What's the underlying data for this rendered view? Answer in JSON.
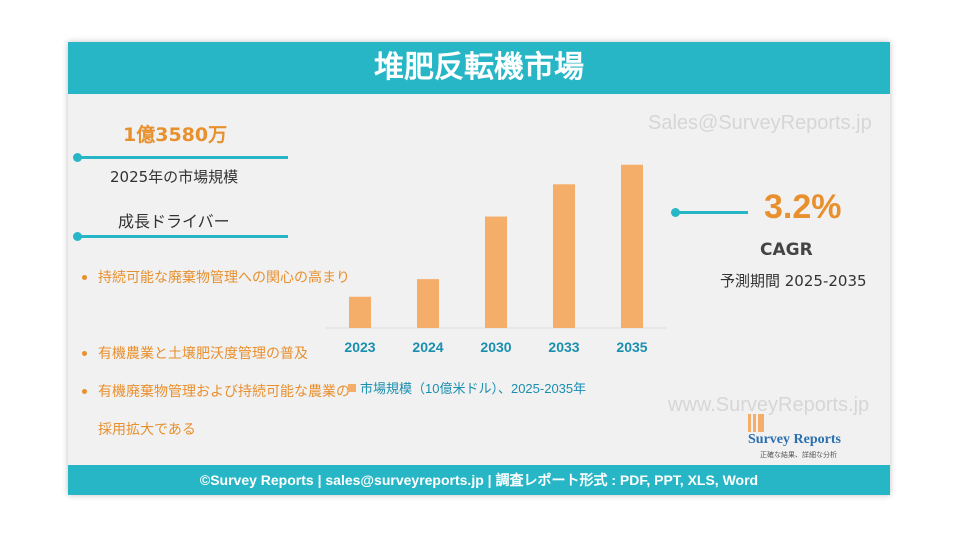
{
  "header": {
    "title": "堆肥反転機市場"
  },
  "watermarks": [
    "Sales@SurveyReports.jp",
    "www.SurveyReports.jp"
  ],
  "stats": {
    "market_value": "1億3580万",
    "market_label": "2025年の市場規模",
    "drivers_heading": "成長ドライバー",
    "cagr": "3.2%",
    "cagr_label": "CAGR",
    "period": "予測期間 2025-2035"
  },
  "drivers": [
    "持続可能な廃棄物管理への関心の高まり",
    "有機農業と土壌肥沃度管理の普及",
    "有機廃棄物管理および持続可能な農業の採用拡大である"
  ],
  "chart_data": {
    "type": "bar",
    "categories": [
      "2023",
      "2024",
      "2030",
      "2033",
      "2035"
    ],
    "series": [
      {
        "name": "市場規模（10億米ドル）、2025-2035年",
        "color": "#f5ae6a",
        "values": [
          32,
          50,
          114,
          147,
          167
        ]
      }
    ],
    "ylim": [
      0,
      180
    ]
  },
  "logo": {
    "name": "Survey Reports",
    "tagline": "正確な結果、詳細な分析"
  },
  "footer": {
    "text": "©Survey Reports | sales@surveyreports.jp |  調査レポート形式 : PDF, PPT, XLS, Word"
  }
}
